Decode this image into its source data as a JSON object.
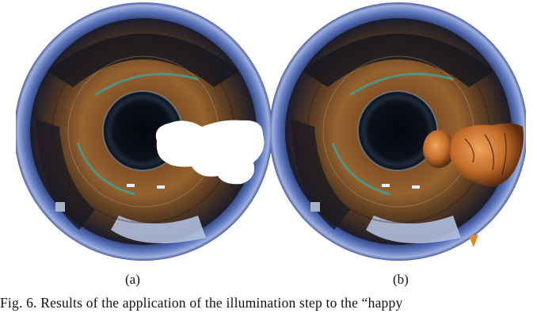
{
  "figure": {
    "panels": [
      {
        "label": "(a)",
        "object": "white-silhouette"
      },
      {
        "label": "(b)",
        "object": "happy-buddha-rendered"
      }
    ],
    "caption": "Fig. 6.   Results of the application of the illumination step to the “happy"
  }
}
